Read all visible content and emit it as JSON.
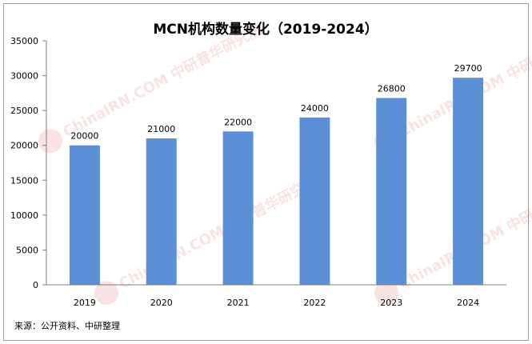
{
  "chart_data": {
    "type": "bar",
    "title": "MCN机构数量变化（2019-2024）",
    "categories": [
      "2019",
      "2020",
      "2021",
      "2022",
      "2023",
      "2024"
    ],
    "values": [
      20000,
      21000,
      22000,
      24000,
      26800,
      29700
    ],
    "data_labels": [
      "20000",
      "21000",
      "22000",
      "24000",
      "26800",
      "29700"
    ],
    "y_ticks": [
      "0",
      "5000",
      "10000",
      "15000",
      "20000",
      "25000",
      "30000",
      "35000"
    ],
    "ylim": [
      0,
      35000
    ],
    "grid": false,
    "legend": "none",
    "bar_color": "#5B8FD6",
    "source": "来源：公开资料、中研整理",
    "watermark": "ChinaIRN.COM 中研普华研究院"
  }
}
